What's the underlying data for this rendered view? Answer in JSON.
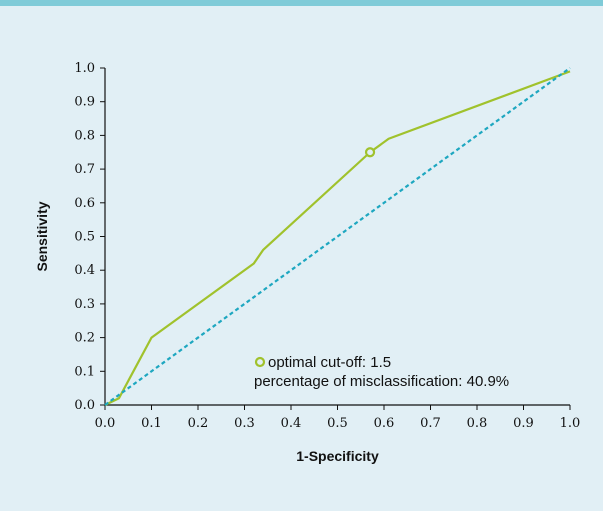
{
  "chart_data": {
    "type": "line",
    "xlabel": "1-Specificity",
    "ylabel": "Sensitivity",
    "xlim": [
      0,
      1
    ],
    "ylim": [
      0,
      1
    ],
    "x_ticks": [
      "0.0",
      "0.1",
      "0.2",
      "0.3",
      "0.4",
      "0.5",
      "0.6",
      "0.7",
      "0.8",
      "0.9",
      "1.0"
    ],
    "y_ticks": [
      "0.0",
      "0.1",
      "0.2",
      "0.3",
      "0.4",
      "0.5",
      "0.6",
      "0.7",
      "0.8",
      "0.9",
      "1.0"
    ],
    "grid": false,
    "series": [
      {
        "color": "#a0c22c",
        "style": "solid",
        "points": [
          [
            0,
            0
          ],
          [
            0.03,
            0.02
          ],
          [
            0.1,
            0.2
          ],
          [
            0.32,
            0.42
          ],
          [
            0.34,
            0.46
          ],
          [
            0.57,
            0.75
          ],
          [
            0.61,
            0.79
          ],
          [
            1.0,
            0.99
          ]
        ]
      },
      {
        "color": "#1ea7c0",
        "style": "dashed",
        "points": [
          [
            0,
            0
          ],
          [
            1.0,
            1.0
          ]
        ]
      }
    ],
    "optimal_point": {
      "x": 0.57,
      "y": 0.75
    },
    "annotation": {
      "line1": "optimal cut-off: 1.5",
      "line2": "percentage of misclassification: 40.9%"
    }
  }
}
